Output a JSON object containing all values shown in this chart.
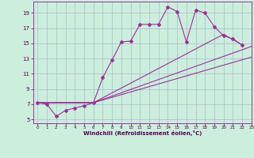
{
  "xlabel": "Windchill (Refroidissement éolien,°C)",
  "background_color": "#cceedd",
  "line_color": "#993399",
  "grid_color": "#aabbcc",
  "xlim": [
    -0.5,
    23
  ],
  "ylim": [
    4.5,
    20.5
  ],
  "yticks": [
    5,
    7,
    9,
    11,
    13,
    15,
    17,
    19
  ],
  "xticks": [
    0,
    1,
    2,
    3,
    4,
    5,
    6,
    7,
    8,
    9,
    10,
    11,
    12,
    13,
    14,
    15,
    16,
    17,
    18,
    19,
    20,
    21,
    22,
    23
  ],
  "curve1_x": [
    0,
    1,
    2,
    3,
    4,
    5,
    6,
    7,
    8,
    9,
    10,
    11,
    12,
    13,
    14,
    15,
    16,
    17,
    18,
    19,
    20,
    21,
    22
  ],
  "curve1_y": [
    7.2,
    7.0,
    5.4,
    6.2,
    6.5,
    6.8,
    7.2,
    10.5,
    12.8,
    15.2,
    15.3,
    17.5,
    17.5,
    17.5,
    19.8,
    19.2,
    15.2,
    19.4,
    19.0,
    17.2,
    16.0,
    15.6,
    14.8
  ],
  "curve2_x": [
    0,
    6,
    23
  ],
  "curve2_y": [
    7.2,
    7.2,
    13.2
  ],
  "curve3_x": [
    0,
    6,
    23
  ],
  "curve3_y": [
    7.2,
    7.2,
    14.6
  ],
  "curve4_x": [
    0,
    6,
    20,
    22
  ],
  "curve4_y": [
    7.2,
    7.2,
    16.2,
    14.8
  ]
}
